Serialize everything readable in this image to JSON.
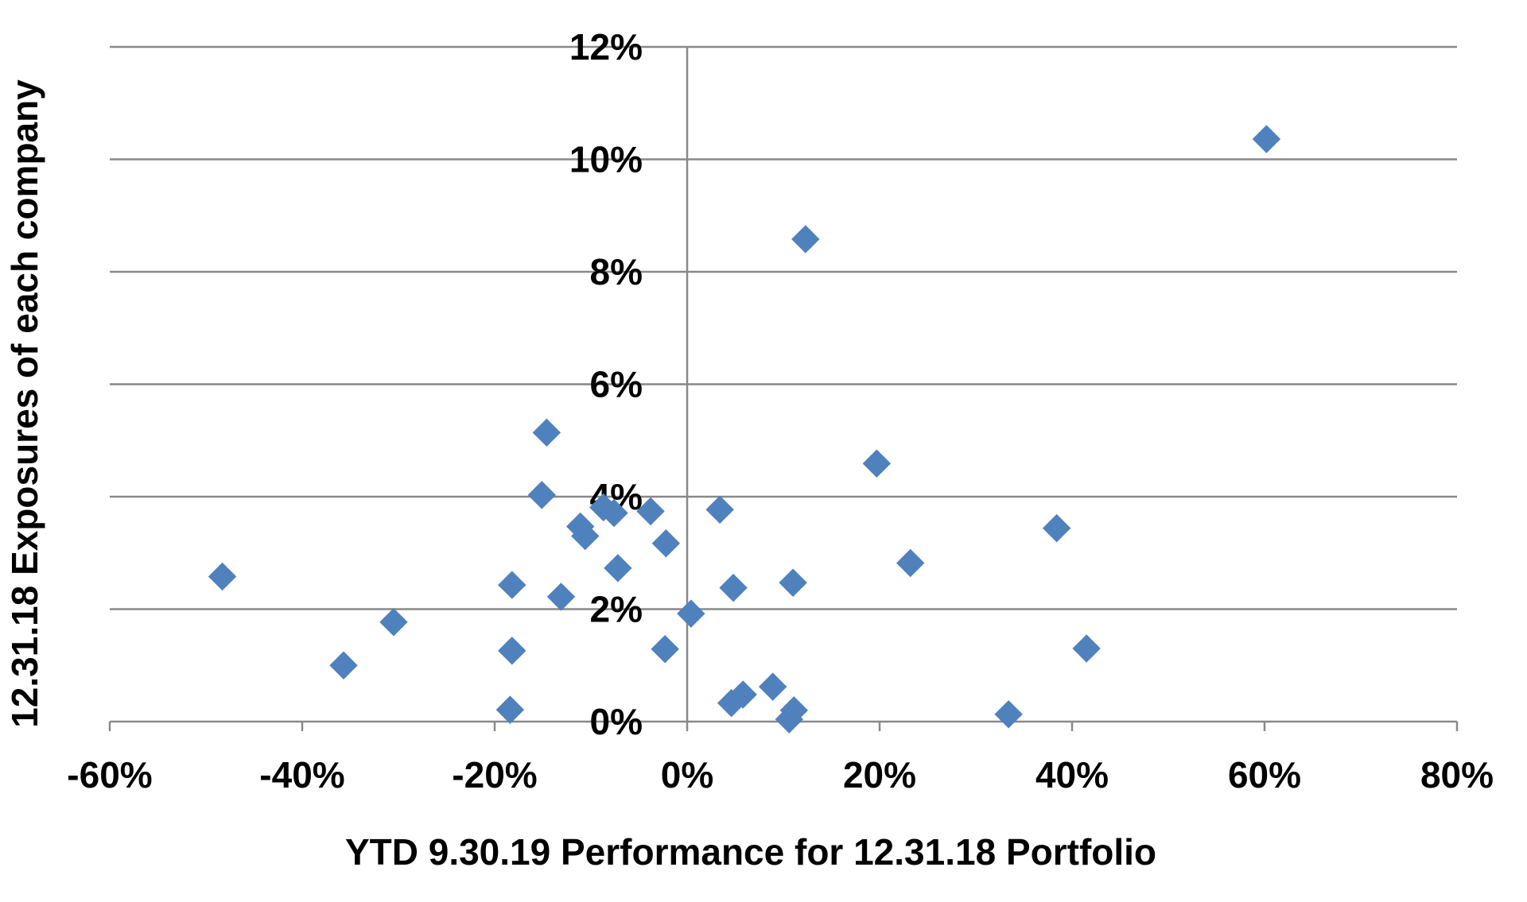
{
  "chart_data": {
    "type": "scatter",
    "xlabel": "YTD 9.30.19 Performance for 12.31.18 Portfolio",
    "ylabel": "12.31.18 Exposures of each company",
    "xlim": [
      -0.6,
      0.8
    ],
    "ylim": [
      0,
      0.12
    ],
    "x_ticks": [
      {
        "value": -0.6,
        "label": "-60%"
      },
      {
        "value": -0.4,
        "label": "-40%"
      },
      {
        "value": -0.2,
        "label": "-20%"
      },
      {
        "value": 0.0,
        "label": "0%"
      },
      {
        "value": 0.2,
        "label": "20%"
      },
      {
        "value": 0.4,
        "label": "40%"
      },
      {
        "value": 0.6,
        "label": "60%"
      },
      {
        "value": 0.8,
        "label": "80%"
      }
    ],
    "y_ticks": [
      {
        "value": 0.0,
        "label": "0%"
      },
      {
        "value": 0.02,
        "label": "2%"
      },
      {
        "value": 0.04,
        "label": "4%"
      },
      {
        "value": 0.06,
        "label": "6%"
      },
      {
        "value": 0.08,
        "label": "8%"
      },
      {
        "value": 0.1,
        "label": "10%"
      },
      {
        "value": 0.12,
        "label": "12%"
      }
    ],
    "grid": "horizontal",
    "marker_color": "#4F81BD",
    "marker": "diamond",
    "series": [
      {
        "points": [
          {
            "x": -0.483,
            "y": 0.0258
          },
          {
            "x": -0.357,
            "y": 0.01
          },
          {
            "x": -0.305,
            "y": 0.0177
          },
          {
            "x": -0.182,
            "y": 0.0243
          },
          {
            "x": -0.182,
            "y": 0.0126
          },
          {
            "x": -0.184,
            "y": 0.0021
          },
          {
            "x": -0.146,
            "y": 0.0514
          },
          {
            "x": -0.151,
            "y": 0.0403
          },
          {
            "x": -0.131,
            "y": 0.0222
          },
          {
            "x": -0.111,
            "y": 0.0347
          },
          {
            "x": -0.106,
            "y": 0.033
          },
          {
            "x": -0.087,
            "y": 0.0381
          },
          {
            "x": -0.076,
            "y": 0.0371
          },
          {
            "x": -0.072,
            "y": 0.0273
          },
          {
            "x": -0.038,
            "y": 0.0374
          },
          {
            "x": -0.022,
            "y": 0.0317
          },
          {
            "x": -0.023,
            "y": 0.0129
          },
          {
            "x": 0.004,
            "y": 0.0192
          },
          {
            "x": 0.034,
            "y": 0.0377
          },
          {
            "x": 0.046,
            "y": 0.0033
          },
          {
            "x": 0.048,
            "y": 0.0238
          },
          {
            "x": 0.058,
            "y": 0.0048
          },
          {
            "x": 0.089,
            "y": 0.0062
          },
          {
            "x": 0.106,
            "y": 0.0004
          },
          {
            "x": 0.111,
            "y": 0.002
          },
          {
            "x": 0.11,
            "y": 0.0247
          },
          {
            "x": 0.123,
            "y": 0.0858
          },
          {
            "x": 0.197,
            "y": 0.0459
          },
          {
            "x": 0.232,
            "y": 0.0282
          },
          {
            "x": 0.334,
            "y": 0.0013
          },
          {
            "x": 0.384,
            "y": 0.0344
          },
          {
            "x": 0.415,
            "y": 0.013
          },
          {
            "x": 0.602,
            "y": 0.1036
          }
        ]
      }
    ]
  }
}
